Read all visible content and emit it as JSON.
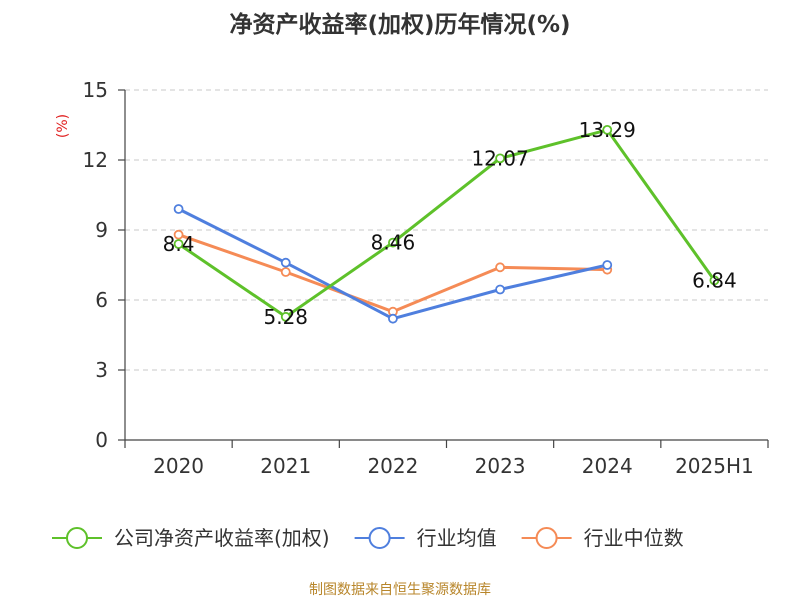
{
  "chart_data": {
    "type": "line",
    "title": "净资产收益率(加权)历年情况(%)",
    "ylabel": "(%)",
    "xlabel": "",
    "ylim": [
      0,
      15
    ],
    "yticks": [
      0,
      3,
      6,
      9,
      12,
      15
    ],
    "grid": true,
    "legend_position": "bottom",
    "categories": [
      "2020",
      "2021",
      "2022",
      "2023",
      "2024",
      "2025H1"
    ],
    "series": [
      {
        "name": "公司净资产收益率(加权)",
        "color": "#5ec12a",
        "values": [
          8.4,
          5.28,
          8.46,
          12.07,
          13.29,
          6.84
        ],
        "labels": [
          "8.4",
          "5.28",
          "8.46",
          "12.07",
          "13.29",
          "6.84"
        ]
      },
      {
        "name": "行业均值",
        "color": "#4f7fde",
        "values": [
          9.9,
          7.6,
          5.2,
          6.45,
          7.5,
          null
        ]
      },
      {
        "name": "行业中位数",
        "color": "#f58b56",
        "values": [
          8.8,
          7.2,
          5.5,
          7.4,
          7.3,
          null
        ]
      }
    ],
    "source": "制图数据来自恒生聚源数据库"
  }
}
